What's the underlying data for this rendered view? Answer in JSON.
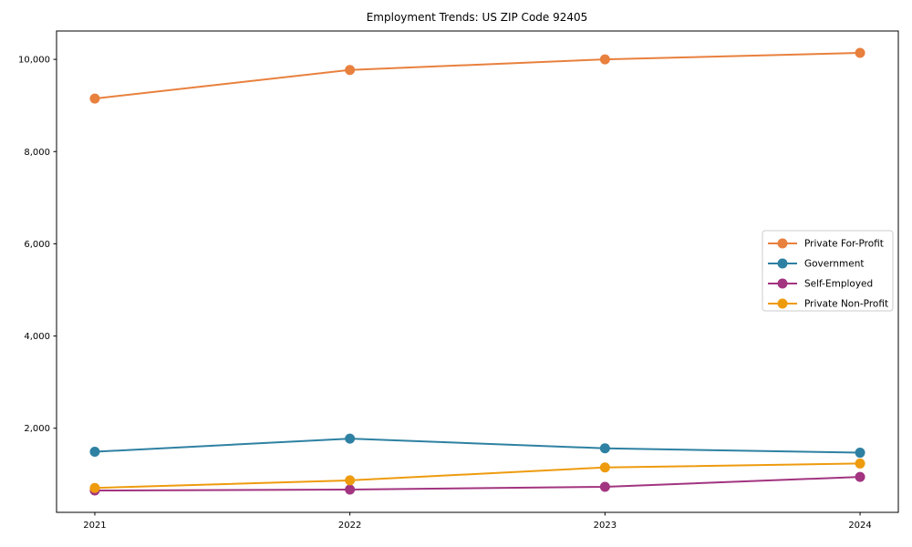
{
  "title": "Employment Trends: US ZIP Code 92405",
  "chart_data": {
    "type": "line",
    "title": "Employment Trends: US ZIP Code 92405",
    "xlabel": "",
    "ylabel": "",
    "x": [
      2021,
      2022,
      2023,
      2024
    ],
    "x_tick_labels": [
      "2021",
      "2022",
      "2023",
      "2024"
    ],
    "y_ticks": [
      2000,
      4000,
      6000,
      8000,
      10000
    ],
    "y_tick_labels": [
      "2,000",
      "4,000",
      "6,000",
      "8,000",
      "10,000"
    ],
    "xlim": [
      2020.85,
      2024.15
    ],
    "ylim": [
      176,
      10615
    ],
    "grid": false,
    "marker": "o",
    "legend_position": "center right",
    "series": [
      {
        "name": "Private For-Profit",
        "color": "#e8803e",
        "values": [
          9150,
          9770,
          10000,
          10140
        ]
      },
      {
        "name": "Government",
        "color": "#2e81a2",
        "values": [
          1490,
          1775,
          1565,
          1470
        ]
      },
      {
        "name": "Self-Employed",
        "color": "#a23480",
        "values": [
          650,
          670,
          730,
          945
        ]
      },
      {
        "name": "Private Non-Profit",
        "color": "#ee9b0e",
        "values": [
          705,
          870,
          1150,
          1235
        ]
      }
    ]
  }
}
